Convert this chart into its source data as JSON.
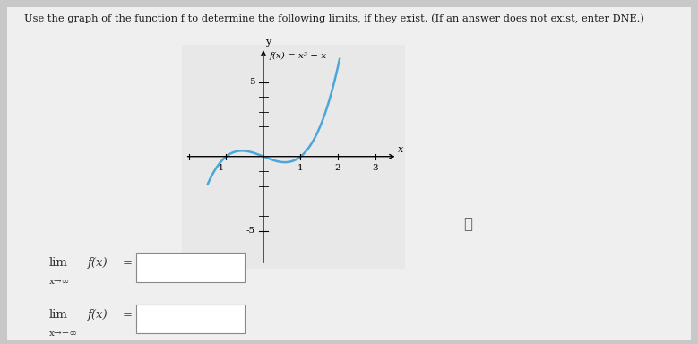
{
  "title_text": "Use the graph of the function f to determine the following limits, if they exist. (If an answer does not exist, enter DNE.)",
  "func_label": "f(x) = x³ − x",
  "curve_color": "#4da6d9",
  "curve_linewidth": 1.8,
  "background_color": "#c8c8c8",
  "content_bg": "#e8e8e8",
  "x_ticks": [
    -1,
    1,
    2,
    3
  ],
  "y_ticks": [
    -5,
    5
  ],
  "xlim": [
    -2.2,
    3.8
  ],
  "ylim": [
    -7.5,
    7.5
  ],
  "x_curve_min": -1.5,
  "x_curve_max": 2.05,
  "y_clip_min": -6.8,
  "y_clip_max": 6.8
}
